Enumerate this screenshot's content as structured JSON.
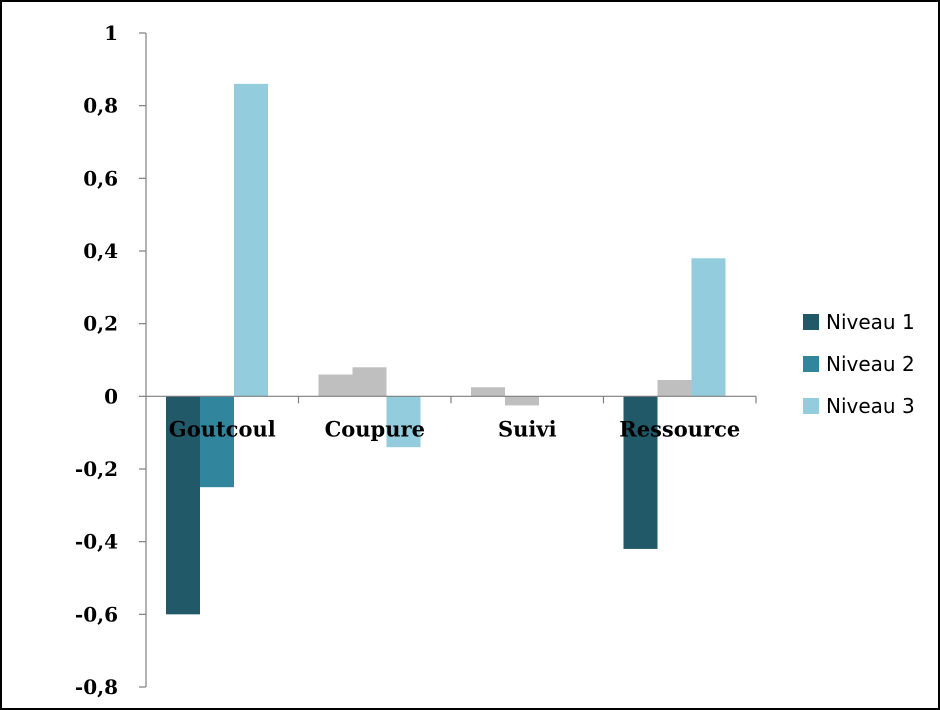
{
  "chart_data": {
    "type": "bar",
    "categories": [
      "Goutcoul",
      "Coupure",
      "Suivi",
      "Ressource"
    ],
    "ylim": [
      -0.8,
      1
    ],
    "yticks": [
      1,
      0.8,
      0.6,
      0.4,
      0.2,
      0,
      -0.2,
      -0.4,
      -0.6,
      -0.8
    ],
    "ytick_labels": [
      "1",
      "0,8",
      "0,6",
      "0,4",
      "0,2",
      "0",
      "-0,2",
      "-0,4",
      "-0,6",
      "-0,8"
    ],
    "grid": false,
    "legend_position": "right",
    "neutral_color": "#bfbfbf",
    "series": [
      {
        "name": "Niveau 1",
        "color": "#215968",
        "values": [
          -0.6,
          0.06,
          0.025,
          -0.42
        ]
      },
      {
        "name": "Niveau 2",
        "color": "#31859c",
        "values": [
          -0.25,
          0.08,
          -0.025,
          0.045
        ]
      },
      {
        "name": "Niveau 3",
        "color": "#93cddd",
        "values": [
          0.86,
          -0.14,
          0.0,
          0.38
        ]
      }
    ],
    "bar_colors": [
      [
        "#215968",
        "#31859c",
        "#93cddd"
      ],
      [
        "#bfbfbf",
        "#bfbfbf",
        "#93cddd"
      ],
      [
        "#bfbfbf",
        "#bfbfbf",
        "#bfbfbf"
      ],
      [
        "#215968",
        "#bfbfbf",
        "#93cddd"
      ]
    ]
  }
}
